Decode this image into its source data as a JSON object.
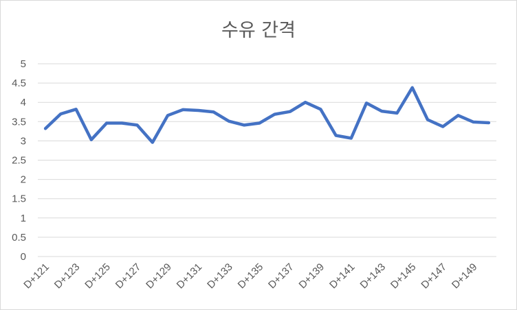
{
  "chart_data": {
    "type": "line",
    "title": "수유 간격",
    "xlabel": "",
    "ylabel": "",
    "ylim": [
      0,
      5
    ],
    "yticks": [
      "0",
      "0.5",
      "1",
      "1.5",
      "2",
      "2.5",
      "3",
      "3.5",
      "4",
      "4.5",
      "5"
    ],
    "grid": true,
    "legend": "none",
    "categories": [
      "D+121",
      "D+122",
      "D+123",
      "D+124",
      "D+125",
      "D+126",
      "D+127",
      "D+128",
      "D+129",
      "D+130",
      "D+131",
      "D+132",
      "D+133",
      "D+134",
      "D+135",
      "D+136",
      "D+137",
      "D+138",
      "D+139",
      "D+140",
      "D+141",
      "D+142",
      "D+143",
      "D+144",
      "D+145",
      "D+146",
      "D+147",
      "D+148",
      "D+149",
      "D+150"
    ],
    "visible_tick_labels": [
      "D+121",
      "D+123",
      "D+125",
      "D+127",
      "D+129",
      "D+131",
      "D+133",
      "D+135",
      "D+137",
      "D+139",
      "D+141",
      "D+143",
      "D+145",
      "D+147",
      "D+149"
    ],
    "series": [
      {
        "color": "#4472c4",
        "values": [
          3.32,
          3.7,
          3.82,
          3.03,
          3.46,
          3.46,
          3.41,
          2.96,
          3.66,
          3.81,
          3.79,
          3.75,
          3.51,
          3.41,
          3.46,
          3.69,
          3.76,
          4.0,
          3.82,
          3.14,
          3.07,
          3.98,
          3.77,
          3.72,
          4.38,
          3.55,
          3.37,
          3.66,
          3.49,
          3.47
        ]
      }
    ],
    "colors": {
      "gridline": "#d9d9d9",
      "text": "#595959"
    }
  }
}
